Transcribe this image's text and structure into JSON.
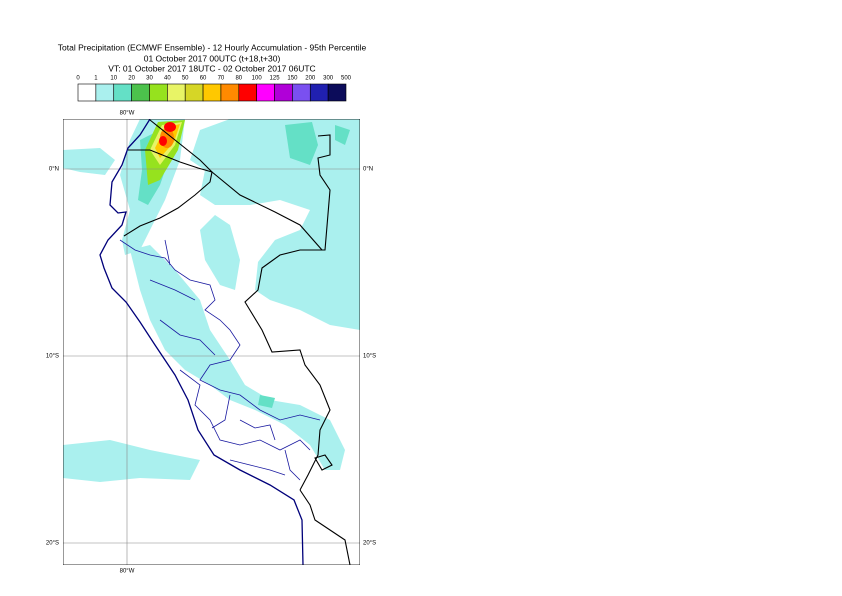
{
  "header": {
    "title": "Total Precipitation (ECMWF Ensemble) - 12 Hourly Accumulation - 95th Percentile",
    "base_time": "01 October 2017 00UTC (t+18,t+30)",
    "valid_time": "VT: 01 October 2017 18UTC - 02 October 2017 06UTC"
  },
  "legend": {
    "levels": [
      0,
      1,
      10,
      20,
      30,
      40,
      50,
      60,
      70,
      80,
      100,
      125,
      150,
      200,
      300,
      500
    ],
    "colors": [
      "#ffffff",
      "#aaf0ee",
      "#64e0c6",
      "#4cc24c",
      "#96e21e",
      "#e8f466",
      "#d6d626",
      "#ffc800",
      "#ff8a00",
      "#ff0000",
      "#ff00ff",
      "#b000d8",
      "#7a50f0",
      "#2020b0",
      "#0c0c5a"
    ]
  },
  "graticule": {
    "meridians": [
      "80°W"
    ],
    "parallels": [
      "0°N",
      "10°S",
      "20°S"
    ]
  }
}
